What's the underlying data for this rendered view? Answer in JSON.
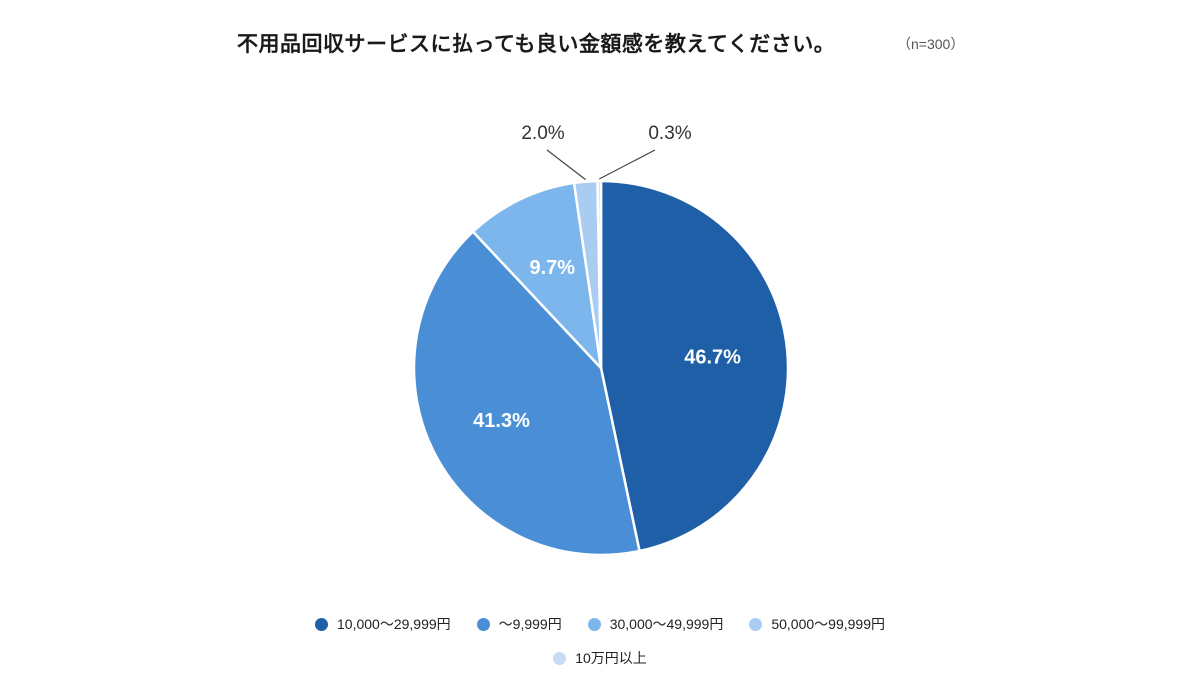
{
  "header": {
    "title": "不用品回収サービスに払っても良い金額感を教えてください。",
    "sample_size": "（n=300）"
  },
  "chart_data": {
    "type": "pie",
    "title": "不用品回収サービスに払っても良い金額感を教えてください。",
    "n_label": "（n=300）",
    "unit": "%",
    "start_angle_deg": 0,
    "direction": "clockwise",
    "slices": [
      {
        "label": "10,000～29,999円",
        "value": 46.7,
        "display": "46.7%",
        "color": "#1f5fa8",
        "label_style": "inside"
      },
      {
        "label": "～9,999円",
        "value": 41.3,
        "display": "41.3%",
        "color": "#4a8fd6",
        "label_style": "inside"
      },
      {
        "label": "30,000～49,999円",
        "value": 9.7,
        "display": "9.7%",
        "color": "#7db6ec",
        "label_style": "inside"
      },
      {
        "label": "50,000～99,999円",
        "value": 2.0,
        "display": "2.0%",
        "color": "#a9cdf2",
        "label_style": "callout"
      },
      {
        "label": "10万円以上",
        "value": 0.3,
        "display": "0.3%",
        "color": "#c6dcf5",
        "label_style": "callout"
      }
    ],
    "legend_position": "bottom"
  }
}
